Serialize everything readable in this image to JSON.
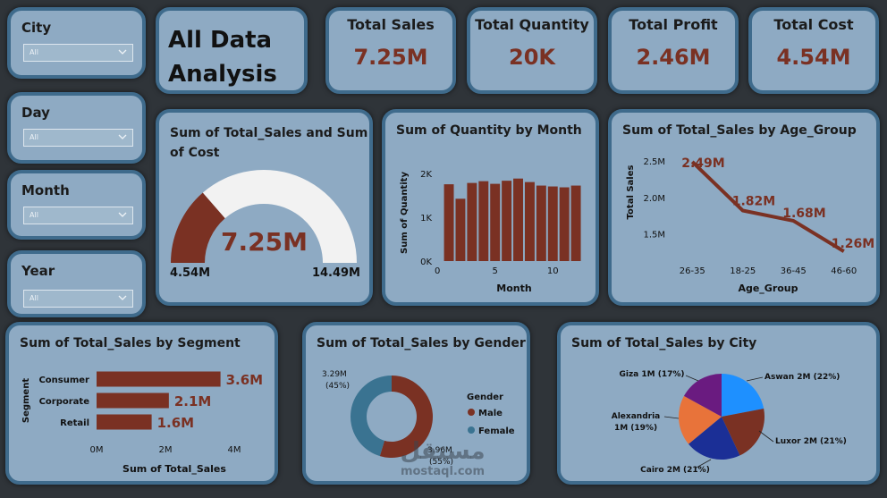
{
  "slicers": [
    {
      "label": "City",
      "value": "All"
    },
    {
      "label": "Day",
      "value": "All"
    },
    {
      "label": "Month",
      "value": "All"
    },
    {
      "label": "Year",
      "value": "All"
    }
  ],
  "header": {
    "title_line1": "All Data",
    "title_line2": "Analysis"
  },
  "kpis": [
    {
      "title": "Total Sales",
      "value": "7.25M"
    },
    {
      "title": "Total Quantity",
      "value": "20K"
    },
    {
      "title": "Total Profit",
      "value": "2.46M"
    },
    {
      "title": "Total Cost",
      "value": "4.54M"
    }
  ],
  "gauge": {
    "title_line1": "Sum of Total_Sales and Sum",
    "title_line2": "of Cost",
    "value_label": "7.25M",
    "min_label": "4.54M",
    "max_label": "14.49M"
  },
  "watermark": {
    "arabic": "مستقل",
    "latin": "mostaql.com"
  },
  "colors": {
    "accent": "#7a3123",
    "card_bg": "#8eaac3",
    "card_border": "#3f6b8c",
    "background": "#2f3439",
    "female": "#3a7391"
  },
  "chart_data": [
    {
      "id": "gauge",
      "type": "gauge",
      "title": "Sum of Total_Sales and Sum of Cost",
      "value": 7.25,
      "min": 4.54,
      "max": 14.49,
      "unit": "M"
    },
    {
      "id": "quantity_by_month",
      "type": "bar",
      "title": "Sum of Quantity by Month",
      "xlabel": "Month",
      "ylabel": "Sum of Quantity",
      "x": [
        1,
        2,
        3,
        4,
        5,
        6,
        7,
        8,
        9,
        10,
        11,
        12
      ],
      "values": [
        1750,
        1420,
        1780,
        1820,
        1760,
        1830,
        1880,
        1800,
        1720,
        1700,
        1680,
        1720
      ],
      "ylim": [
        0,
        2200
      ],
      "yticks": [
        "0K",
        "1K",
        "2K"
      ],
      "xticks": [
        "0",
        "5",
        "10"
      ]
    },
    {
      "id": "sales_by_age",
      "type": "line",
      "title": "Sum of Total_Sales by Age_Group",
      "xlabel": "Age_Group",
      "ylabel": "Total Sales",
      "categories": [
        "26-35",
        "18-25",
        "36-45",
        "46-60"
      ],
      "values": [
        2.49,
        1.82,
        1.68,
        1.26
      ],
      "labels": [
        "2.49M",
        "1.82M",
        "1.68M",
        "1.26M"
      ],
      "yticks": [
        "1.5M",
        "2.0M",
        "2.5M"
      ],
      "ylim": [
        1.2,
        2.6
      ]
    },
    {
      "id": "sales_by_segment",
      "type": "bar",
      "orientation": "horizontal",
      "title": "Sum of Total_Sales by Segment",
      "xlabel": "Sum of Total_Sales",
      "ylabel": "Segment",
      "categories": [
        "Consumer",
        "Corporate",
        "Retail"
      ],
      "values": [
        3.6,
        2.1,
        1.6
      ],
      "labels": [
        "3.6M",
        "2.1M",
        "1.6M"
      ],
      "xticks": [
        "0M",
        "2M",
        "4M"
      ],
      "xlim": [
        0,
        4
      ]
    },
    {
      "id": "sales_by_gender",
      "type": "pie",
      "donut": true,
      "title": "Sum of Total_Sales by Gender",
      "legend_title": "Gender",
      "categories": [
        "Male",
        "Female"
      ],
      "values": [
        3.96,
        3.29
      ],
      "labels": [
        "3.96M (55%)",
        "3.29M (45%)"
      ],
      "colors": [
        "#7a3123",
        "#3a7391"
      ]
    },
    {
      "id": "sales_by_city",
      "type": "pie",
      "title": "Sum of Total_Sales by City",
      "categories": [
        "Aswan",
        "Luxor",
        "Cairo",
        "Alexandria",
        "Giza"
      ],
      "values": [
        22,
        21,
        21,
        19,
        17
      ],
      "labels": [
        "Aswan 2M (22%)",
        "Luxor 2M (21%)",
        "Cairo 2M (21%)",
        "Alexandria 1M (19%)",
        "Giza 1M (17%)"
      ],
      "colors": [
        "#1e90ff",
        "#7a3123",
        "#1b2f96",
        "#e8733a",
        "#6a1b80"
      ]
    }
  ]
}
